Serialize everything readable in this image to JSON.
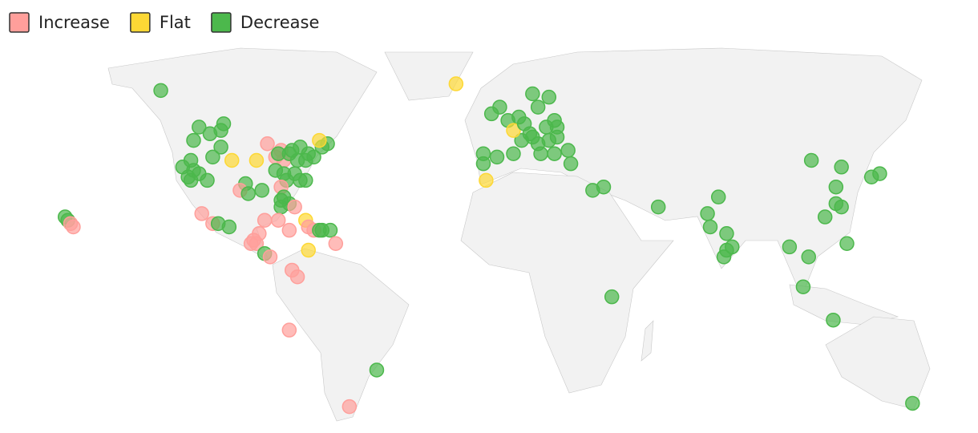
{
  "legend": [
    {
      "label": "Increase",
      "color": "#ff9f9b"
    },
    {
      "label": "Flat",
      "color": "#fdd835"
    },
    {
      "label": "Decrease",
      "color": "#4cb84c"
    }
  ],
  "points": [
    {
      "lon": -123,
      "lat": 61,
      "status": "Decrease"
    },
    {
      "lon": -158,
      "lat": 23,
      "status": "Decrease"
    },
    {
      "lon": -157,
      "lat": 22,
      "status": "Decrease"
    },
    {
      "lon": -155,
      "lat": 20,
      "status": "Increase"
    },
    {
      "lon": -156,
      "lat": 21,
      "status": "Increase"
    },
    {
      "lon": -109,
      "lat": 50,
      "status": "Decrease"
    },
    {
      "lon": -105,
      "lat": 48,
      "status": "Decrease"
    },
    {
      "lon": -101,
      "lat": 49,
      "status": "Decrease"
    },
    {
      "lon": -100,
      "lat": 51,
      "status": "Decrease"
    },
    {
      "lon": -111,
      "lat": 46,
      "status": "Decrease"
    },
    {
      "lon": -101,
      "lat": 44,
      "status": "Decrease"
    },
    {
      "lon": -104,
      "lat": 41,
      "status": "Decrease"
    },
    {
      "lon": -112,
      "lat": 40,
      "status": "Decrease"
    },
    {
      "lon": -115,
      "lat": 38,
      "status": "Decrease"
    },
    {
      "lon": -113,
      "lat": 35,
      "status": "Decrease"
    },
    {
      "lon": -112,
      "lat": 34,
      "status": "Decrease"
    },
    {
      "lon": -109,
      "lat": 36,
      "status": "Decrease"
    },
    {
      "lon": -106,
      "lat": 34,
      "status": "Decrease"
    },
    {
      "lon": -111,
      "lat": 37,
      "status": "Decrease"
    },
    {
      "lon": -97,
      "lat": 40,
      "status": "Flat"
    },
    {
      "lon": -88,
      "lat": 40,
      "status": "Flat"
    },
    {
      "lon": -84,
      "lat": 45,
      "status": "Increase"
    },
    {
      "lon": -79,
      "lat": 43,
      "status": "Increase"
    },
    {
      "lon": -81,
      "lat": 41,
      "status": "Increase"
    },
    {
      "lon": -78,
      "lat": 40,
      "status": "Increase"
    },
    {
      "lon": -80,
      "lat": 42,
      "status": "Decrease"
    },
    {
      "lon": -75,
      "lat": 43,
      "status": "Decrease"
    },
    {
      "lon": -72,
      "lat": 44,
      "status": "Decrease"
    },
    {
      "lon": -69,
      "lat": 42,
      "status": "Decrease"
    },
    {
      "lon": -67,
      "lat": 41,
      "status": "Decrease"
    },
    {
      "lon": -70,
      "lat": 40,
      "status": "Decrease"
    },
    {
      "lon": -73,
      "lat": 40,
      "status": "Decrease"
    },
    {
      "lon": -78,
      "lat": 36,
      "status": "Decrease"
    },
    {
      "lon": -81,
      "lat": 37,
      "status": "Decrease"
    },
    {
      "lon": -74,
      "lat": 36,
      "status": "Decrease"
    },
    {
      "lon": -77,
      "lat": 34,
      "status": "Decrease"
    },
    {
      "lon": -72,
      "lat": 34,
      "status": "Decrease"
    },
    {
      "lon": -70,
      "lat": 34,
      "status": "Decrease"
    },
    {
      "lon": -64,
      "lat": 44,
      "status": "Decrease"
    },
    {
      "lon": -62,
      "lat": 45,
      "status": "Decrease"
    },
    {
      "lon": -65,
      "lat": 46,
      "status": "Flat"
    },
    {
      "lon": -76,
      "lat": 42,
      "status": "Decrease"
    },
    {
      "lon": -92,
      "lat": 33,
      "status": "Decrease"
    },
    {
      "lon": -94,
      "lat": 31,
      "status": "Increase"
    },
    {
      "lon": -91,
      "lat": 30,
      "status": "Decrease"
    },
    {
      "lon": -86,
      "lat": 31,
      "status": "Decrease"
    },
    {
      "lon": -79,
      "lat": 32,
      "status": "Increase"
    },
    {
      "lon": -78,
      "lat": 29,
      "status": "Decrease"
    },
    {
      "lon": -79,
      "lat": 28,
      "status": "Decrease"
    },
    {
      "lon": -79,
      "lat": 26,
      "status": "Decrease"
    },
    {
      "lon": -76,
      "lat": 27,
      "status": "Decrease"
    },
    {
      "lon": -74,
      "lat": 26,
      "status": "Increase"
    },
    {
      "lon": -80,
      "lat": 22,
      "status": "Increase"
    },
    {
      "lon": -108,
      "lat": 24,
      "status": "Increase"
    },
    {
      "lon": -104,
      "lat": 21,
      "status": "Increase"
    },
    {
      "lon": -102,
      "lat": 21,
      "status": "Decrease"
    },
    {
      "lon": -98,
      "lat": 20,
      "status": "Decrease"
    },
    {
      "lon": -85,
      "lat": 22,
      "status": "Increase"
    },
    {
      "lon": -87,
      "lat": 18,
      "status": "Increase"
    },
    {
      "lon": -89,
      "lat": 16,
      "status": "Increase"
    },
    {
      "lon": -90,
      "lat": 15,
      "status": "Increase"
    },
    {
      "lon": -88,
      "lat": 15,
      "status": "Increase"
    },
    {
      "lon": -85,
      "lat": 12,
      "status": "Decrease"
    },
    {
      "lon": -83,
      "lat": 11,
      "status": "Increase"
    },
    {
      "lon": -76,
      "lat": 19,
      "status": "Increase"
    },
    {
      "lon": -70,
      "lat": 22,
      "status": "Flat"
    },
    {
      "lon": -69,
      "lat": 20,
      "status": "Increase"
    },
    {
      "lon": -67,
      "lat": 19,
      "status": "Increase"
    },
    {
      "lon": -65,
      "lat": 19,
      "status": "Decrease"
    },
    {
      "lon": -64,
      "lat": 19,
      "status": "Decrease"
    },
    {
      "lon": -61,
      "lat": 19,
      "status": "Decrease"
    },
    {
      "lon": -59,
      "lat": 15,
      "status": "Increase"
    },
    {
      "lon": -69,
      "lat": 13,
      "status": "Flat"
    },
    {
      "lon": -75,
      "lat": 7,
      "status": "Increase"
    },
    {
      "lon": -73,
      "lat": 5,
      "status": "Increase"
    },
    {
      "lon": -76,
      "lat": -11,
      "status": "Increase"
    },
    {
      "lon": -44,
      "lat": -23,
      "status": "Decrease"
    },
    {
      "lon": -54,
      "lat": -34,
      "status": "Increase"
    },
    {
      "lon": -15,
      "lat": 63,
      "status": "Flat"
    },
    {
      "lon": -2,
      "lat": 54,
      "status": "Decrease"
    },
    {
      "lon": 1,
      "lat": 56,
      "status": "Decrease"
    },
    {
      "lon": 4,
      "lat": 52,
      "status": "Decrease"
    },
    {
      "lon": 8,
      "lat": 53,
      "status": "Decrease"
    },
    {
      "lon": 13,
      "lat": 60,
      "status": "Decrease"
    },
    {
      "lon": 19,
      "lat": 59,
      "status": "Decrease"
    },
    {
      "lon": 15,
      "lat": 56,
      "status": "Decrease"
    },
    {
      "lon": 21,
      "lat": 52,
      "status": "Decrease"
    },
    {
      "lon": 18,
      "lat": 50,
      "status": "Decrease"
    },
    {
      "lon": 12,
      "lat": 48,
      "status": "Decrease"
    },
    {
      "lon": 9,
      "lat": 46,
      "status": "Decrease"
    },
    {
      "lon": 15,
      "lat": 45,
      "status": "Decrease"
    },
    {
      "lon": 22,
      "lat": 47,
      "status": "Decrease"
    },
    {
      "lon": 26,
      "lat": 43,
      "status": "Decrease"
    },
    {
      "lon": 21,
      "lat": 42,
      "status": "Decrease"
    },
    {
      "lon": 16,
      "lat": 42,
      "status": "Decrease"
    },
    {
      "lon": 6,
      "lat": 49,
      "status": "Flat"
    },
    {
      "lon": 6,
      "lat": 42,
      "status": "Decrease"
    },
    {
      "lon": -5,
      "lat": 42,
      "status": "Decrease"
    },
    {
      "lon": -5,
      "lat": 39,
      "status": "Decrease"
    },
    {
      "lon": 0,
      "lat": 41,
      "status": "Decrease"
    },
    {
      "lon": -4,
      "lat": 34,
      "status": "Flat"
    },
    {
      "lon": 27,
      "lat": 39,
      "status": "Decrease"
    },
    {
      "lon": 22,
      "lat": 50,
      "status": "Decrease"
    },
    {
      "lon": 10,
      "lat": 51,
      "status": "Decrease"
    },
    {
      "lon": 13,
      "lat": 47,
      "status": "Decrease"
    },
    {
      "lon": 19,
      "lat": 46,
      "status": "Decrease"
    },
    {
      "lon": 35,
      "lat": 31,
      "status": "Decrease"
    },
    {
      "lon": 39,
      "lat": 32,
      "status": "Decrease"
    },
    {
      "lon": 59,
      "lat": 26,
      "status": "Decrease"
    },
    {
      "lon": 42,
      "lat": -1,
      "status": "Decrease"
    },
    {
      "lon": 81,
      "lat": 29,
      "status": "Decrease"
    },
    {
      "lon": 77,
      "lat": 24,
      "status": "Decrease"
    },
    {
      "lon": 78,
      "lat": 20,
      "status": "Decrease"
    },
    {
      "lon": 84,
      "lat": 18,
      "status": "Decrease"
    },
    {
      "lon": 86,
      "lat": 14,
      "status": "Decrease"
    },
    {
      "lon": 83,
      "lat": 11,
      "status": "Decrease"
    },
    {
      "lon": 84,
      "lat": 13,
      "status": "Decrease"
    },
    {
      "lon": 107,
      "lat": 14,
      "status": "Decrease"
    },
    {
      "lon": 114,
      "lat": 11,
      "status": "Decrease"
    },
    {
      "lon": 112,
      "lat": 2,
      "status": "Decrease"
    },
    {
      "lon": 123,
      "lat": -8,
      "status": "Decrease"
    },
    {
      "lon": 115,
      "lat": 40,
      "status": "Decrease"
    },
    {
      "lon": 126,
      "lat": 38,
      "status": "Decrease"
    },
    {
      "lon": 124,
      "lat": 32,
      "status": "Decrease"
    },
    {
      "lon": 126,
      "lat": 26,
      "status": "Decrease"
    },
    {
      "lon": 124,
      "lat": 27,
      "status": "Decrease"
    },
    {
      "lon": 120,
      "lat": 23,
      "status": "Decrease"
    },
    {
      "lon": 128,
      "lat": 15,
      "status": "Decrease"
    },
    {
      "lon": 137,
      "lat": 35,
      "status": "Decrease"
    },
    {
      "lon": 140,
      "lat": 36,
      "status": "Decrease"
    },
    {
      "lon": 152,
      "lat": -33,
      "status": "Decrease"
    }
  ]
}
